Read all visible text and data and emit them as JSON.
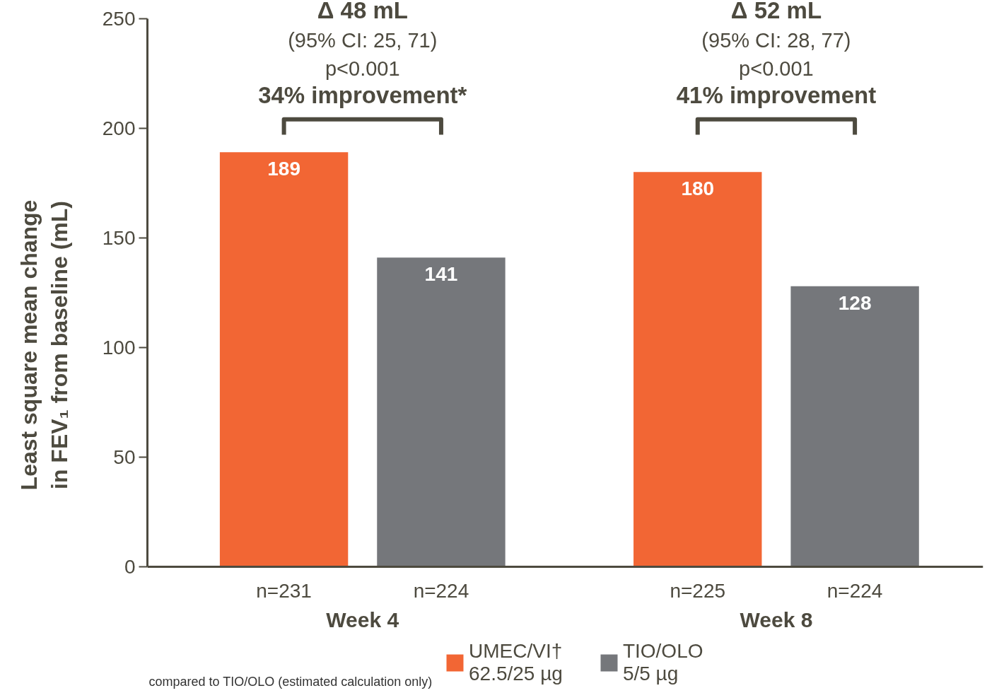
{
  "chart_data": {
    "type": "bar",
    "ylabel": "Least square mean change\nin FEV₁ from baseline (mL)",
    "categories": [
      "Week 4",
      "Week 8"
    ],
    "series": [
      {
        "name": "UMEC/VI†\n62.5/25 µg",
        "color": "#f26634",
        "values": [
          189,
          180
        ]
      },
      {
        "name": "TIO/OLO\n5/5 µg",
        "color": "#75777b",
        "values": [
          141,
          128
        ]
      }
    ],
    "ylim": [
      0,
      250
    ],
    "yticks": [
      0,
      50,
      100,
      150,
      200,
      250
    ],
    "data_labels": true,
    "grid": false,
    "legend": "bottom",
    "annotations": [
      "n=231",
      "n=224",
      "n=225",
      "n=224",
      "Δ 48 mL",
      "(95% CI: 25, 71)",
      "p<0.001",
      "34% improvement*",
      "Δ 52 mL",
      "(95% CI: 28, 77)",
      "p<0.001",
      "41% improvement",
      "compared to TIO/OLO (estimated calculation only)"
    ]
  }
}
